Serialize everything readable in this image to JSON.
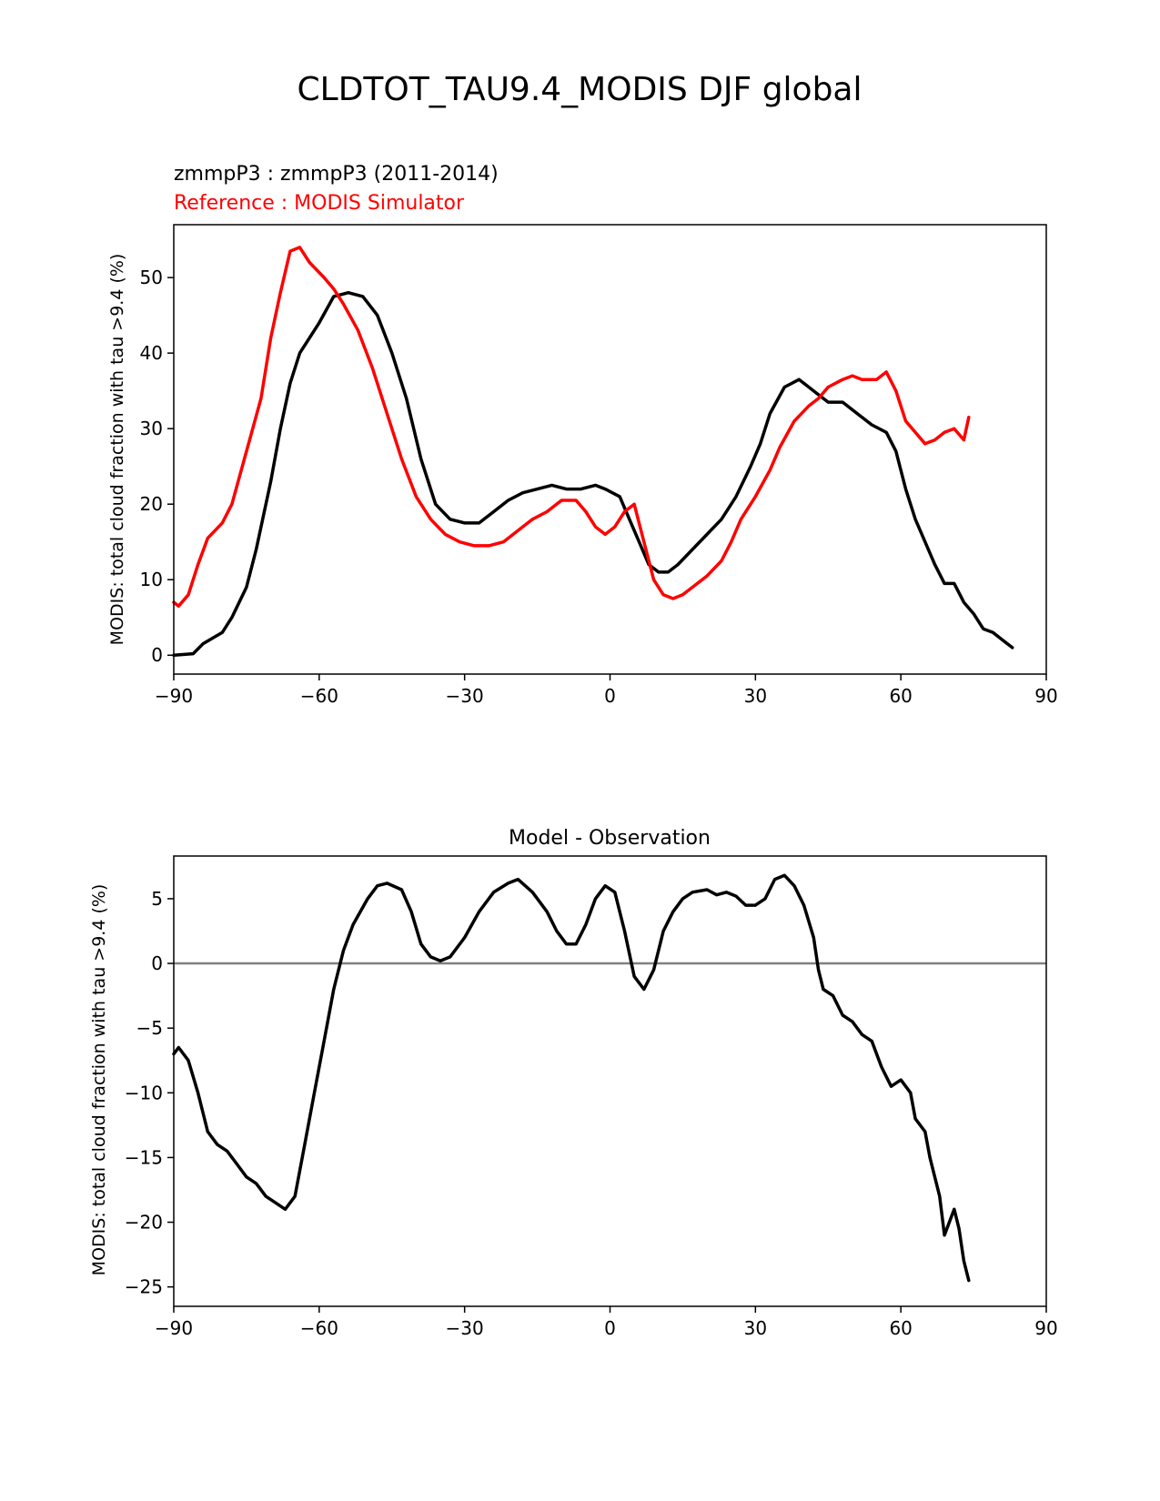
{
  "figure": {
    "title": "CLDTOT_TAU9.4_MODIS DJF global"
  },
  "chart_data": [
    {
      "type": "line",
      "subtitle_model": "zmmpP3 : zmmpP3 (2011-2014)",
      "subtitle_reference": "Reference : MODIS Simulator",
      "xlabel": "",
      "ylabel": "MODIS: total cloud fraction with tau >9.4 (%)",
      "xlim": [
        -90,
        90
      ],
      "ylim": [
        -2.5,
        57
      ],
      "xticks": [
        -90,
        -60,
        -30,
        0,
        30,
        60,
        90
      ],
      "xtick_labels": [
        "−90",
        "−60",
        "−30",
        "0",
        "30",
        "60",
        "90"
      ],
      "yticks": [
        0,
        10,
        20,
        30,
        40,
        50
      ],
      "ytick_labels": [
        "0",
        "10",
        "20",
        "30",
        "40",
        "50"
      ],
      "colors": {
        "model": "#000000",
        "reference": "#ff0000"
      },
      "series": [
        {
          "name": "zmmpP3",
          "color": "#000000",
          "points": [
            [
              -90,
              0
            ],
            [
              -86,
              0.2
            ],
            [
              -84,
              1.5
            ],
            [
              -80,
              3
            ],
            [
              -78,
              5
            ],
            [
              -75,
              9
            ],
            [
              -73,
              14
            ],
            [
              -70,
              23
            ],
            [
              -68,
              30
            ],
            [
              -66,
              36
            ],
            [
              -64,
              40
            ],
            [
              -60,
              44
            ],
            [
              -57,
              47.5
            ],
            [
              -54,
              48
            ],
            [
              -51,
              47.5
            ],
            [
              -48,
              45
            ],
            [
              -45,
              40
            ],
            [
              -42,
              34
            ],
            [
              -39,
              26
            ],
            [
              -36,
              20
            ],
            [
              -33,
              18
            ],
            [
              -30,
              17.5
            ],
            [
              -27,
              17.5
            ],
            [
              -24,
              19
            ],
            [
              -21,
              20.5
            ],
            [
              -18,
              21.5
            ],
            [
              -15,
              22
            ],
            [
              -12,
              22.5
            ],
            [
              -9,
              22
            ],
            [
              -6,
              22
            ],
            [
              -3,
              22.5
            ],
            [
              -1,
              22
            ],
            [
              2,
              21
            ],
            [
              4,
              18
            ],
            [
              6,
              15
            ],
            [
              8,
              12
            ],
            [
              10,
              11
            ],
            [
              12,
              11
            ],
            [
              14,
              12
            ],
            [
              17,
              14
            ],
            [
              20,
              16
            ],
            [
              23,
              18
            ],
            [
              26,
              21
            ],
            [
              29,
              25
            ],
            [
              31,
              28
            ],
            [
              33,
              32
            ],
            [
              36,
              35.5
            ],
            [
              39,
              36.5
            ],
            [
              42,
              35
            ],
            [
              45,
              33.5
            ],
            [
              48,
              33.5
            ],
            [
              51,
              32
            ],
            [
              54,
              30.5
            ],
            [
              57,
              29.5
            ],
            [
              59,
              27
            ],
            [
              61,
              22
            ],
            [
              63,
              18
            ],
            [
              65,
              15
            ],
            [
              67,
              12
            ],
            [
              69,
              9.5
            ],
            [
              71,
              9.5
            ],
            [
              73,
              7
            ],
            [
              75,
              5.5
            ],
            [
              77,
              3.5
            ],
            [
              79,
              3
            ],
            [
              81,
              2
            ],
            [
              83,
              1
            ]
          ]
        },
        {
          "name": "MODIS Simulator",
          "color": "#ff0000",
          "points": [
            [
              -90,
              7
            ],
            [
              -89,
              6.5
            ],
            [
              -87,
              8
            ],
            [
              -85,
              12
            ],
            [
              -83,
              15.5
            ],
            [
              -80,
              17.5
            ],
            [
              -78,
              20
            ],
            [
              -75,
              27
            ],
            [
              -72,
              34
            ],
            [
              -70,
              42
            ],
            [
              -68,
              48
            ],
            [
              -66,
              53.5
            ],
            [
              -64,
              54
            ],
            [
              -62,
              52
            ],
            [
              -59,
              50
            ],
            [
              -57,
              48.5
            ],
            [
              -55,
              46.5
            ],
            [
              -52,
              43
            ],
            [
              -49,
              38
            ],
            [
              -46,
              32
            ],
            [
              -43,
              26
            ],
            [
              -40,
              21
            ],
            [
              -37,
              18
            ],
            [
              -34,
              16
            ],
            [
              -31,
              15
            ],
            [
              -28,
              14.5
            ],
            [
              -25,
              14.5
            ],
            [
              -22,
              15
            ],
            [
              -19,
              16.5
            ],
            [
              -16,
              18
            ],
            [
              -13,
              19
            ],
            [
              -10,
              20.5
            ],
            [
              -7,
              20.5
            ],
            [
              -5,
              19
            ],
            [
              -3,
              17
            ],
            [
              -1,
              16
            ],
            [
              1,
              17
            ],
            [
              3,
              19
            ],
            [
              5,
              20
            ],
            [
              7,
              15
            ],
            [
              9,
              10
            ],
            [
              11,
              8
            ],
            [
              13,
              7.5
            ],
            [
              15,
              8
            ],
            [
              17,
              9
            ],
            [
              20,
              10.5
            ],
            [
              23,
              12.5
            ],
            [
              25,
              15
            ],
            [
              27,
              18
            ],
            [
              30,
              21
            ],
            [
              33,
              24.5
            ],
            [
              35,
              27.5
            ],
            [
              38,
              31
            ],
            [
              41,
              33
            ],
            [
              43,
              34
            ],
            [
              45,
              35.5
            ],
            [
              48,
              36.5
            ],
            [
              50,
              37
            ],
            [
              52,
              36.5
            ],
            [
              55,
              36.5
            ],
            [
              57,
              37.5
            ],
            [
              59,
              35
            ],
            [
              61,
              31
            ],
            [
              63,
              29.5
            ],
            [
              65,
              28
            ],
            [
              67,
              28.5
            ],
            [
              69,
              29.5
            ],
            [
              71,
              30
            ],
            [
              73,
              28.5
            ],
            [
              74,
              31.5
            ]
          ]
        }
      ]
    },
    {
      "type": "line",
      "title": "Model - Observation",
      "xlabel": "",
      "ylabel": "MODIS: total cloud fraction with tau >9.4 (%)",
      "xlim": [
        -90,
        90
      ],
      "ylim": [
        -26.5,
        8.3
      ],
      "xticks": [
        -90,
        -60,
        -30,
        0,
        30,
        60,
        90
      ],
      "xtick_labels": [
        "−90",
        "−60",
        "−30",
        "0",
        "30",
        "60",
        "90"
      ],
      "yticks": [
        5,
        0,
        -5,
        -10,
        -15,
        -20,
        -25
      ],
      "ytick_labels": [
        "5",
        "0",
        "−5",
        "−10",
        "−15",
        "−20",
        "−25"
      ],
      "zero_line_color": "#808080",
      "series": [
        {
          "name": "Model - Observation",
          "color": "#000000",
          "points": [
            [
              -90,
              -7
            ],
            [
              -89,
              -6.5
            ],
            [
              -87,
              -7.5
            ],
            [
              -85,
              -10
            ],
            [
              -83,
              -13
            ],
            [
              -81,
              -14
            ],
            [
              -79,
              -14.5
            ],
            [
              -77,
              -15.5
            ],
            [
              -75,
              -16.5
            ],
            [
              -73,
              -17
            ],
            [
              -71,
              -18
            ],
            [
              -69,
              -18.5
            ],
            [
              -67,
              -19
            ],
            [
              -65,
              -18
            ],
            [
              -63,
              -14
            ],
            [
              -61,
              -10
            ],
            [
              -59,
              -6
            ],
            [
              -57,
              -2
            ],
            [
              -55,
              1
            ],
            [
              -53,
              3
            ],
            [
              -50,
              5
            ],
            [
              -48,
              6
            ],
            [
              -46,
              6.2
            ],
            [
              -43,
              5.7
            ],
            [
              -41,
              4
            ],
            [
              -39,
              1.5
            ],
            [
              -37,
              0.5
            ],
            [
              -35,
              0.2
            ],
            [
              -33,
              0.5
            ],
            [
              -30,
              2
            ],
            [
              -27,
              4
            ],
            [
              -24,
              5.5
            ],
            [
              -21,
              6.2
            ],
            [
              -19,
              6.5
            ],
            [
              -16,
              5.5
            ],
            [
              -13,
              4
            ],
            [
              -11,
              2.5
            ],
            [
              -9,
              1.5
            ],
            [
              -7,
              1.5
            ],
            [
              -5,
              3
            ],
            [
              -3,
              5
            ],
            [
              -1,
              6
            ],
            [
              1,
              5.5
            ],
            [
              3,
              2.5
            ],
            [
              5,
              -1
            ],
            [
              7,
              -2
            ],
            [
              9,
              -0.5
            ],
            [
              11,
              2.5
            ],
            [
              13,
              4
            ],
            [
              15,
              5
            ],
            [
              17,
              5.5
            ],
            [
              20,
              5.7
            ],
            [
              22,
              5.3
            ],
            [
              24,
              5.5
            ],
            [
              26,
              5.2
            ],
            [
              28,
              4.5
            ],
            [
              30,
              4.5
            ],
            [
              32,
              5
            ],
            [
              34,
              6.5
            ],
            [
              36,
              6.8
            ],
            [
              38,
              6
            ],
            [
              40,
              4.5
            ],
            [
              42,
              2
            ],
            [
              43,
              -0.5
            ],
            [
              44,
              -2
            ],
            [
              46,
              -2.5
            ],
            [
              48,
              -4
            ],
            [
              50,
              -4.5
            ],
            [
              52,
              -5.5
            ],
            [
              54,
              -6
            ],
            [
              56,
              -8
            ],
            [
              58,
              -9.5
            ],
            [
              60,
              -9
            ],
            [
              62,
              -10
            ],
            [
              63,
              -12
            ],
            [
              65,
              -13
            ],
            [
              66,
              -15
            ],
            [
              68,
              -18
            ],
            [
              69,
              -21
            ],
            [
              71,
              -19
            ],
            [
              72,
              -20.5
            ],
            [
              73,
              -23
            ],
            [
              74,
              -24.5
            ]
          ]
        }
      ]
    }
  ]
}
